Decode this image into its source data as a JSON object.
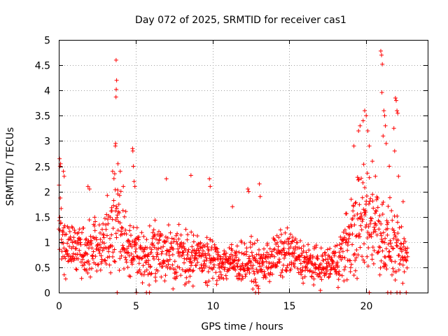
{
  "chart_data": {
    "type": "scatter",
    "title": "Day 072 of 2025, SRMTID for receiver cas1",
    "xlabel": "GPS time / hours",
    "ylabel": "SRMTID / TECUs",
    "xlim": [
      0,
      24
    ],
    "ylim": [
      0,
      5
    ],
    "xticks": [
      "0",
      "5",
      "10",
      "15",
      "20"
    ],
    "yticks": [
      "0",
      "0.5",
      "1",
      "1.5",
      "2",
      "2.5",
      "3",
      "3.5",
      "4",
      "4.5",
      "5"
    ],
    "grid": true,
    "marker": "+",
    "series_color": "#ff0000",
    "point_spacing_hours": 0.0167,
    "x_start": 0.0,
    "x_end": 22.7,
    "profile_x": [
      0,
      0.3,
      0.8,
      1.5,
      2.2,
      2.8,
      3.4,
      3.8,
      4.2,
      4.8,
      5.5,
      6.5,
      7.5,
      8.5,
      9.5,
      10.5,
      11.5,
      12.5,
      13.0,
      14.0,
      15.0,
      16.0,
      17.0,
      18.0,
      18.5,
      19.0,
      19.5,
      20.0,
      20.5,
      21.0,
      21.3,
      21.6,
      22.0,
      22.4,
      22.7
    ],
    "profile_base": [
      1.5,
      1.0,
      0.9,
      0.8,
      0.9,
      0.9,
      1.2,
      1.5,
      1.0,
      0.8,
      0.7,
      0.8,
      0.8,
      0.7,
      0.7,
      0.6,
      0.6,
      0.6,
      0.5,
      0.7,
      0.8,
      0.6,
      0.5,
      0.6,
      0.8,
      1.1,
      1.3,
      1.5,
      1.4,
      1.2,
      1.0,
      1.0,
      0.8,
      0.7,
      0.7
    ],
    "profile_spread": [
      0.8,
      0.5,
      0.4,
      0.45,
      0.5,
      0.45,
      0.7,
      0.9,
      0.6,
      0.5,
      0.45,
      0.5,
      0.5,
      0.45,
      0.4,
      0.35,
      0.35,
      0.35,
      0.35,
      0.4,
      0.4,
      0.35,
      0.3,
      0.35,
      0.55,
      0.7,
      0.9,
      1.0,
      0.9,
      0.8,
      0.7,
      0.6,
      0.5,
      0.5,
      0.4
    ],
    "peak_points": [
      {
        "x": 0.05,
        "y": 2.65
      },
      {
        "x": 0.08,
        "y": 2.5
      },
      {
        "x": 0.12,
        "y": 2.55
      },
      {
        "x": 0.3,
        "y": 2.4
      },
      {
        "x": 0.35,
        "y": 2.3
      },
      {
        "x": 1.9,
        "y": 2.1
      },
      {
        "x": 2.0,
        "y": 2.05
      },
      {
        "x": 3.5,
        "y": 2.4
      },
      {
        "x": 3.68,
        "y": 2.9
      },
      {
        "x": 3.7,
        "y": 2.95
      },
      {
        "x": 3.72,
        "y": 3.87
      },
      {
        "x": 3.74,
        "y": 4.02
      },
      {
        "x": 3.76,
        "y": 4.2
      },
      {
        "x": 3.73,
        "y": 4.6
      },
      {
        "x": 3.85,
        "y": 2.55
      },
      {
        "x": 4.0,
        "y": 2.4
      },
      {
        "x": 4.2,
        "y": 2.1
      },
      {
        "x": 4.8,
        "y": 2.85
      },
      {
        "x": 4.82,
        "y": 2.8
      },
      {
        "x": 4.85,
        "y": 2.5
      },
      {
        "x": 4.9,
        "y": 2.2
      },
      {
        "x": 4.95,
        "y": 2.1
      },
      {
        "x": 7.0,
        "y": 2.25
      },
      {
        "x": 8.6,
        "y": 2.32
      },
      {
        "x": 9.8,
        "y": 2.25
      },
      {
        "x": 9.85,
        "y": 2.1
      },
      {
        "x": 11.3,
        "y": 1.7
      },
      {
        "x": 12.3,
        "y": 2.05
      },
      {
        "x": 12.35,
        "y": 2.0
      },
      {
        "x": 13.05,
        "y": 2.15
      },
      {
        "x": 13.1,
        "y": 1.9
      },
      {
        "x": 19.2,
        "y": 2.9
      },
      {
        "x": 19.5,
        "y": 3.2
      },
      {
        "x": 19.6,
        "y": 3.3
      },
      {
        "x": 19.8,
        "y": 3.4
      },
      {
        "x": 19.9,
        "y": 3.6
      },
      {
        "x": 20.0,
        "y": 3.5
      },
      {
        "x": 20.1,
        "y": 3.2
      },
      {
        "x": 20.2,
        "y": 2.9
      },
      {
        "x": 20.4,
        "y": 2.6
      },
      {
        "x": 20.6,
        "y": 2.3
      },
      {
        "x": 20.95,
        "y": 4.78
      },
      {
        "x": 21.0,
        "y": 4.7
      },
      {
        "x": 21.05,
        "y": 4.52
      },
      {
        "x": 21.02,
        "y": 3.96
      },
      {
        "x": 21.15,
        "y": 3.6
      },
      {
        "x": 21.2,
        "y": 3.5
      },
      {
        "x": 21.25,
        "y": 3.3
      },
      {
        "x": 21.1,
        "y": 3.1
      },
      {
        "x": 21.3,
        "y": 2.95
      },
      {
        "x": 21.5,
        "y": 2.5
      },
      {
        "x": 21.9,
        "y": 3.85
      },
      {
        "x": 21.95,
        "y": 3.8
      },
      {
        "x": 22.0,
        "y": 3.6
      },
      {
        "x": 22.05,
        "y": 3.55
      },
      {
        "x": 21.8,
        "y": 3.25
      },
      {
        "x": 21.85,
        "y": 2.8
      },
      {
        "x": 22.1,
        "y": 2.3
      },
      {
        "x": 22.4,
        "y": 1.8
      }
    ],
    "zero_points": [
      {
        "x": 3.8,
        "y": 0.0
      },
      {
        "x": 5.05,
        "y": 0.0
      },
      {
        "x": 5.7,
        "y": 0.0
      },
      {
        "x": 5.9,
        "y": 0.0
      },
      {
        "x": 12.8,
        "y": 0.0
      },
      {
        "x": 13.0,
        "y": 0.0
      },
      {
        "x": 20.2,
        "y": 0.0
      },
      {
        "x": 21.4,
        "y": 0.0
      },
      {
        "x": 21.6,
        "y": 0.0
      },
      {
        "x": 22.0,
        "y": 0.0
      },
      {
        "x": 22.2,
        "y": 0.0
      },
      {
        "x": 22.6,
        "y": 0.0
      }
    ]
  }
}
